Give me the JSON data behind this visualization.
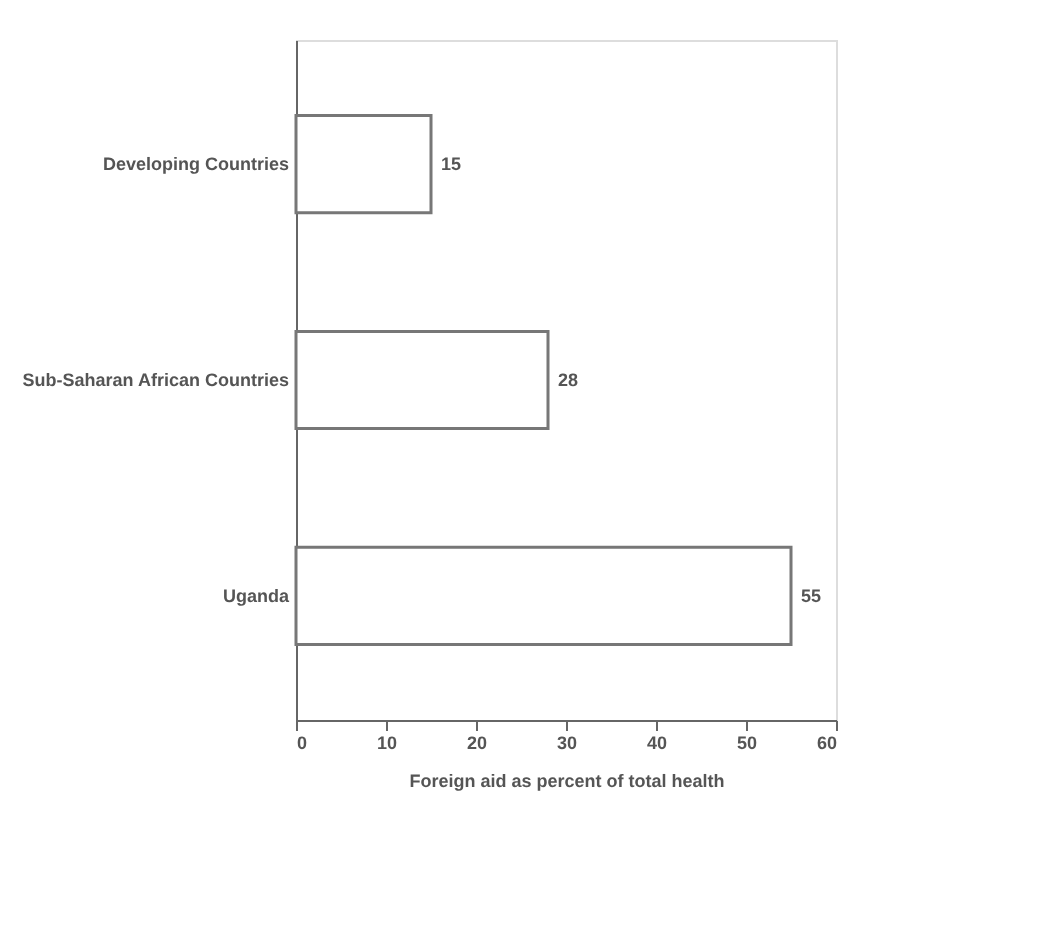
{
  "chart_data": {
    "type": "bar",
    "orientation": "horizontal",
    "categories": [
      "Developing Countries",
      "Sub-Saharan African Countries",
      "Uganda"
    ],
    "values": [
      15,
      28,
      55
    ],
    "color": "#ffffff",
    "data_labels": true,
    "xlabel": "Foreign aid as percent of total health",
    "xlim": [
      0,
      60
    ],
    "xticks": [
      0,
      10,
      20,
      30,
      40,
      50,
      60
    ]
  }
}
